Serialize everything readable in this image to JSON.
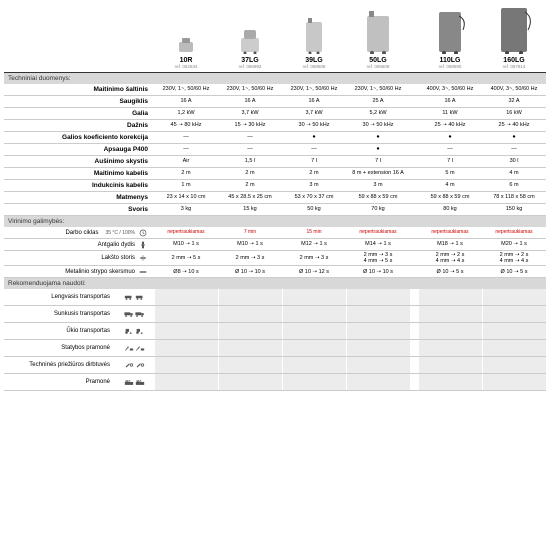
{
  "products_a": [
    {
      "name": "10R",
      "ref": "ref. 052534"
    },
    {
      "name": "37LG",
      "ref": "ref. 056992"
    },
    {
      "name": "39LG",
      "ref": "ref. 058505"
    },
    {
      "name": "50LG",
      "ref": "ref. 055509"
    }
  ],
  "products_b": [
    {
      "name": "110LG",
      "ref": "ref. 058590"
    },
    {
      "name": "160LG",
      "ref": "ref. 057814"
    }
  ],
  "sec_tech": "Techniniai duomenys:",
  "tech_rows": [
    {
      "label": "Maitinimo šaltinis",
      "bold": true,
      "a": [
        "230V, 1~, 50/60 Hz",
        "230V, 1~, 50/60 Hz",
        "230V, 1~, 50/60 Hz",
        "230V, 1~, 50/60 Hz"
      ],
      "b": [
        "400V, 3~, 50/60 Hz",
        "400V, 3~, 50/60 Hz"
      ]
    },
    {
      "label": "Saugiklis",
      "bold": true,
      "a": [
        "16 A",
        "16 A",
        "16 A",
        "25 A"
      ],
      "b": [
        "16 A",
        "32 A"
      ]
    },
    {
      "label": "Galia",
      "bold": true,
      "a": [
        "1,2 kW",
        "3,7 kW",
        "3,7 kW",
        "5,2 kW"
      ],
      "b": [
        "11 kW",
        "16 kW"
      ]
    },
    {
      "label": "Dažnis",
      "bold": true,
      "a": [
        "45 ➝ 80 kHz",
        "15 ➝ 30 kHz",
        "30 ➝ 50 kHz",
        "30 ➝ 50 kHz"
      ],
      "b": [
        "25 ➝ 40 kHz",
        "25 ➝ 40 kHz"
      ]
    },
    {
      "label": "Galios koeficiento korekcija",
      "bold": true,
      "a": [
        "—",
        "—",
        "●",
        "●"
      ],
      "b": [
        "●",
        "●"
      ]
    },
    {
      "label": "Apsauga P400",
      "bold": true,
      "a": [
        "—",
        "—",
        "—",
        "●"
      ],
      "b": [
        "—",
        "—"
      ]
    },
    {
      "label": "Aušinimo skystis",
      "bold": true,
      "a": [
        "Air",
        "1,5 l",
        "7 l",
        "7 l"
      ],
      "b": [
        "7 l",
        "30 l"
      ]
    },
    {
      "label": "Maitinimo kabelis",
      "bold": true,
      "a": [
        "2 m",
        "2 m",
        "2 m",
        "8 m + extension 16 A"
      ],
      "b": [
        "5 m",
        "4 m"
      ]
    },
    {
      "label": "Indukcinis kabelis",
      "bold": true,
      "a": [
        "1 m",
        "2 m",
        "3 m",
        "3 m"
      ],
      "b": [
        "4 m",
        "6 m"
      ]
    },
    {
      "label": "Matmenys",
      "bold": true,
      "a": [
        "23 x 14 x 10 cm",
        "45 x 28.5 x 25 cm",
        "53 x 70 x 37 cm",
        "59 x 88 x 59 cm"
      ],
      "b": [
        "59 x 88 x 59 cm",
        "78 x 118 x 58 cm"
      ]
    },
    {
      "label": "Svoris",
      "bold": true,
      "a": [
        "3 kg",
        "15 kg",
        "50 kg",
        "70 kg"
      ],
      "b": [
        "80 kg",
        "150 kg"
      ]
    }
  ],
  "sec_heat": "Virinimo galimybės:",
  "cycle_label": "Darbo ciklas",
  "cycle_sub": "35 °C / 100%",
  "nepert": "nepertraukiamas",
  "cycle_a": [
    "",
    "7 min",
    "15 min",
    ""
  ],
  "cycle_b": [
    "",
    ""
  ],
  "heat_rows": [
    {
      "label": "Antgalio dydis",
      "icon": "bolt",
      "a": [
        "M10 ➝ 1 s",
        "M10 ➝ 1 s",
        "M12 ➝ 1 s",
        "M14 ➝ 1 s"
      ],
      "b": [
        "M18 ➝ 1 s",
        "M20 ➝ 1 s"
      ]
    },
    {
      "label": "Lakšto storis",
      "icon": "sheet",
      "a": [
        "2 mm ➝ 5 s",
        "2 mm ➝ 3 s",
        "2 mm ➝ 3 s",
        "2 mm ➝ 3 s\n4 mm ➝ 5 s"
      ],
      "b": [
        "2 mm ➝ 2 s\n4 mm ➝ 4 s",
        "2 mm ➝ 2 s\n4 mm ➝ 4 s"
      ]
    },
    {
      "label": "Metalinio strypo skersmuo",
      "icon": "bar",
      "a": [
        "Ø8 ➝ 10 s",
        "Ø 10 ➝ 10 s",
        "Ø 10 ➝ 12 s",
        "Ø 10 ➝ 10 s"
      ],
      "b": [
        "Ø 10 ➝ 5 s",
        "Ø 10 ➝ 5 s"
      ]
    }
  ],
  "sec_rec": "Rekomenduojama naudoti:",
  "rec_rows": [
    {
      "label": "Lengvasis transportas",
      "icon": "car"
    },
    {
      "label": "Sunkusis transportas",
      "icon": "truck"
    },
    {
      "label": "Ūkio transportas",
      "icon": "tractor"
    },
    {
      "label": "Statybos pramonė",
      "icon": "build"
    },
    {
      "label": "Techninės priežiūros dirbtuvės",
      "icon": "maint"
    },
    {
      "label": "Pramonė",
      "icon": "factory"
    }
  ]
}
